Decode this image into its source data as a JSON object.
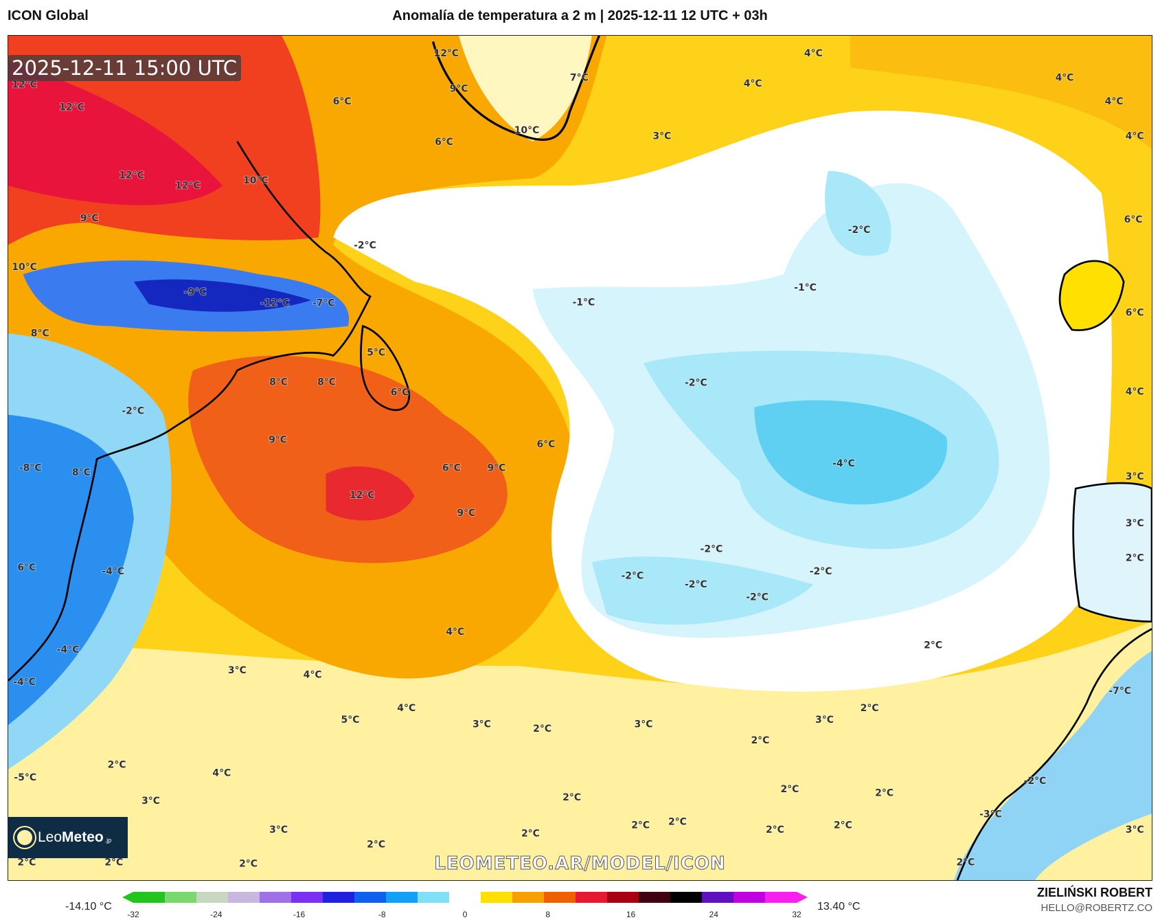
{
  "header": {
    "model": "ICON Global",
    "title": "Anomalía de temperatura a 2 m | 2025-12-11 12 UTC + 03h"
  },
  "map": {
    "valid_time": "2025-12-11 15:00 UTC",
    "watermark": "LEOMETEO.AR/MODEL/ICON",
    "logo": {
      "name": "LeoMeteo",
      "part1": "Leo",
      "part2": "Meteo",
      "suffix": ".jp"
    },
    "contour_labels": [
      "12°C",
      "12°C",
      "7°C",
      "9°C",
      "4°C",
      "4°C",
      "4°C",
      "4°C",
      "4°C",
      "6°C",
      "12°C",
      "10°C",
      "6°C",
      "3°C",
      "12°C",
      "12°C",
      "10°C",
      "9°C",
      "6°C",
      "-2°C",
      "-2°C",
      "10°C",
      "-1°C",
      "-9°C",
      "-12°C",
      "-7°C",
      "-1°C",
      "6°C",
      "8°C",
      "5°C",
      "8°C",
      "8°C",
      "-2°C",
      "6°C",
      "4°C",
      "-2°C",
      "9°C",
      "6°C",
      "6°C",
      "9°C",
      "-8°C",
      "8°C",
      "-4°C",
      "3°C",
      "12°C",
      "9°C",
      "3°C",
      "-2°C",
      "2°C",
      "-2°C",
      "6°C",
      "-4°C",
      "-2°C",
      "-2°C",
      "-2°C",
      "4°C",
      "2°C",
      "-4°C",
      "3°C",
      "4°C",
      "-4°C",
      "-7°C",
      "2°C",
      "5°C",
      "4°C",
      "3°C",
      "2°C",
      "3°C",
      "3°C",
      "2°C",
      "2°C",
      "-5°C",
      "4°C",
      "-2°C",
      "2°C",
      "2°C",
      "3°C",
      "2°C",
      "-3°C",
      "2°C",
      "2°C",
      "2°C",
      "2°C",
      "3°C",
      "3°C",
      "2°C",
      "2°C",
      "2°C",
      "2°C",
      "2°C",
      "2°C"
    ]
  },
  "colorbar": {
    "min_label": "-14.10 °C",
    "max_label": "13.40 °C",
    "ticks": [
      "-32",
      "-24",
      "-16",
      "-8",
      "0",
      "8",
      "16",
      "24",
      "32"
    ],
    "range": [
      -32,
      32
    ],
    "colors": [
      "#22c41e",
      "#7ad86e",
      "#c8d8c0",
      "#c8b8e0",
      "#a070e8",
      "#7a30f0",
      "#2020e0",
      "#1060f0",
      "#10a0f8",
      "#80e0f8",
      "#ffffff",
      "#ffe000",
      "#f8a000",
      "#f06000",
      "#e81830",
      "#a80010",
      "#400010",
      "#000000",
      "#6010c0",
      "#c000e0",
      "#f820f0"
    ]
  },
  "credits": {
    "author": "ZIELIŃSKI ROBERT",
    "email": "HELLO@ROBERTZ.CO"
  }
}
